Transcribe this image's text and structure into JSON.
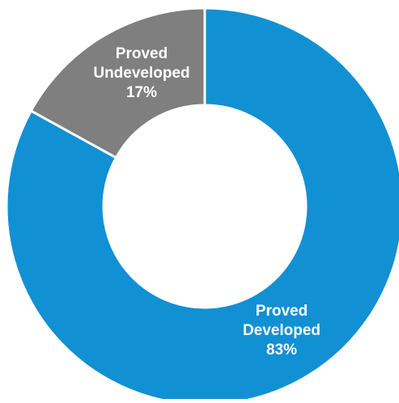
{
  "chart_data": {
    "type": "pie",
    "variant": "donut",
    "title": "",
    "slices": [
      {
        "label_lines": [
          "Proved",
          "Developed",
          "83%"
        ],
        "category": "Proved Developed",
        "value": 83,
        "display_value": "83%",
        "color": "#1290d4"
      },
      {
        "label_lines": [
          "Proved",
          "Undeveloped",
          "17%"
        ],
        "category": "Proved Undeveloped",
        "value": 17,
        "display_value": "17%",
        "color": "#7f7f7f"
      }
    ],
    "start_angle": "12 o'clock",
    "direction": "clockwise",
    "legend": "none",
    "separator_color": "#ffffff"
  }
}
